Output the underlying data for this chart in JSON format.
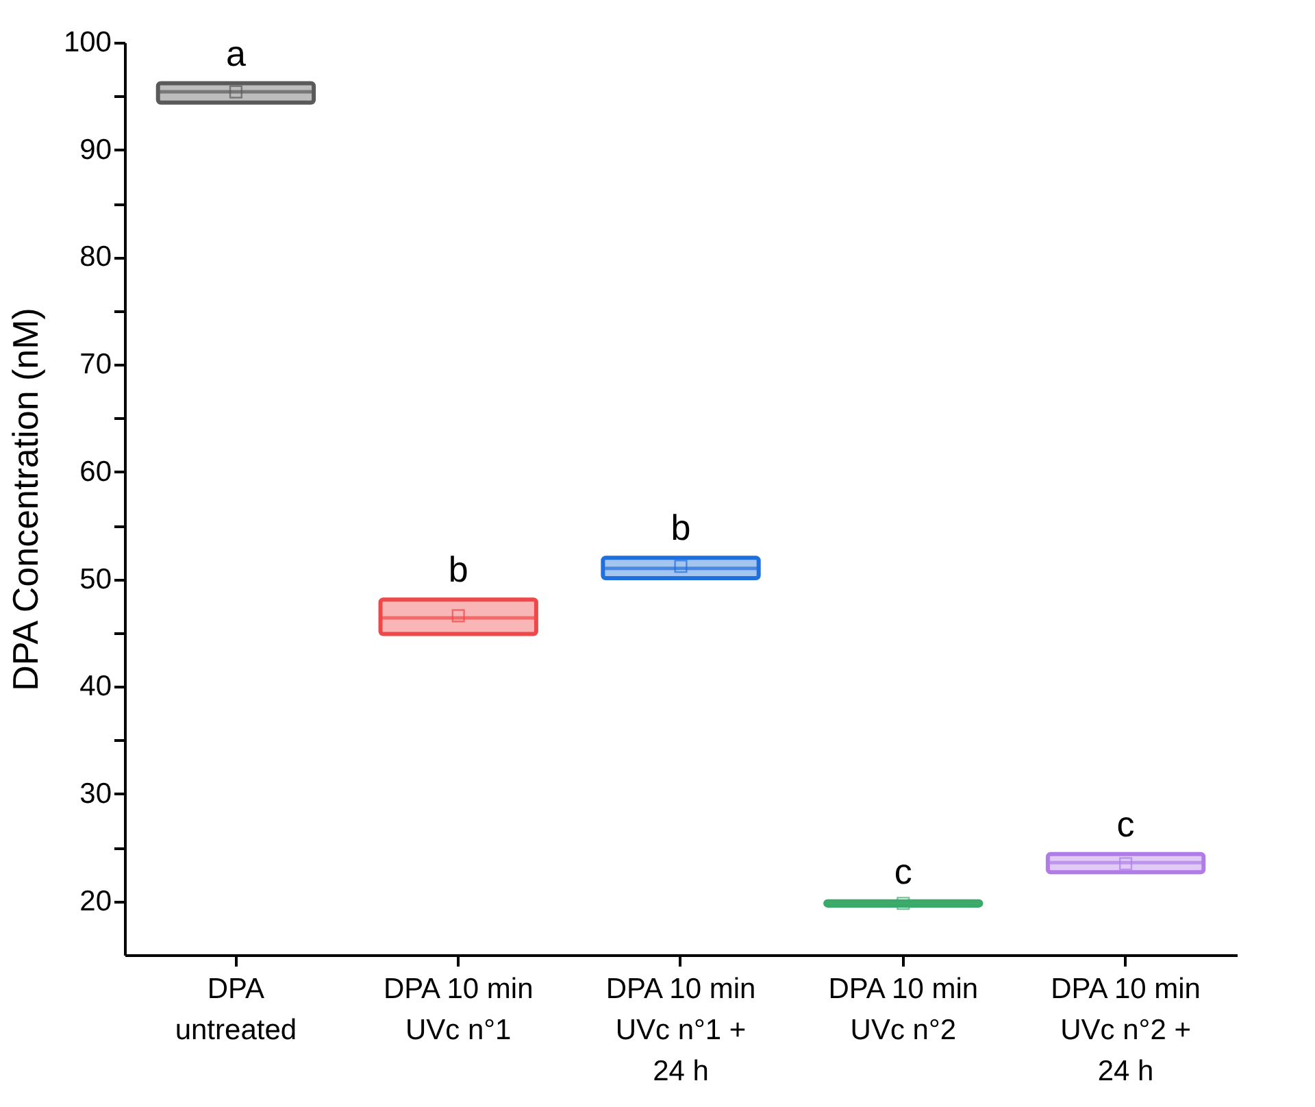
{
  "chart_data": {
    "type": "box",
    "ylabel": "DPA Concentration (nM)",
    "categories": [
      "DPA untreated",
      "DPA 10 min UVc n°1",
      "DPA 10 min UVc n°1 + 24 h",
      "DPA 10 min UVc n°2",
      "DPA 10 min UVc n°2 + 24 h"
    ],
    "boxes": [
      {
        "low": 94.4,
        "q1": 94.4,
        "median": 95.4,
        "q3": 96.2,
        "high": 96.2,
        "mean": 95.4
      },
      {
        "low": 44.9,
        "q1": 44.9,
        "median": 46.4,
        "q3": 48.1,
        "high": 48.1,
        "mean": 46.6
      },
      {
        "low": 50.1,
        "q1": 50.1,
        "median": 51.0,
        "q3": 52.0,
        "high": 52.0,
        "mean": 51.2
      },
      {
        "low": 19.6,
        "q1": 19.6,
        "median": 19.8,
        "q3": 20.0,
        "high": 20.0,
        "mean": 19.8
      },
      {
        "low": 22.7,
        "q1": 22.7,
        "median": 23.6,
        "q3": 24.4,
        "high": 24.4,
        "mean": 23.5
      }
    ],
    "colors": [
      "#5a5a5a",
      "#f04848",
      "#1f6fdc",
      "#3aaa6a",
      "#b07ce8"
    ],
    "marker": "square",
    "ylim": [
      15,
      100
    ],
    "yticks": [
      20,
      {
        "value": 25,
        "label": null
      },
      30,
      {
        "value": 35,
        "label": null
      },
      40,
      {
        "value": 45,
        "label": null
      },
      50,
      {
        "value": 55,
        "label": null
      },
      60,
      {
        "value": 65,
        "label": null
      },
      70,
      {
        "value": 75,
        "label": null
      },
      80,
      {
        "value": 85,
        "label": null
      },
      90,
      {
        "value": 95,
        "label": null
      },
      100
    ],
    "grid": false,
    "annotations": [
      {
        "text": "a",
        "x": "DPA untreated",
        "y": 96.2
      },
      {
        "text": "b",
        "x": "DPA 10 min UVc n°1",
        "y": 48.1
      },
      {
        "text": "b",
        "x": "DPA 10 min UVc n°1 + 24 h",
        "y": 52.0
      },
      {
        "text": "c",
        "x": "DPA 10 min UVc n°2",
        "y": 20.0
      },
      {
        "text": "c",
        "x": "DPA 10 min UVc n°2 + 24 h",
        "y": 24.4
      }
    ]
  }
}
